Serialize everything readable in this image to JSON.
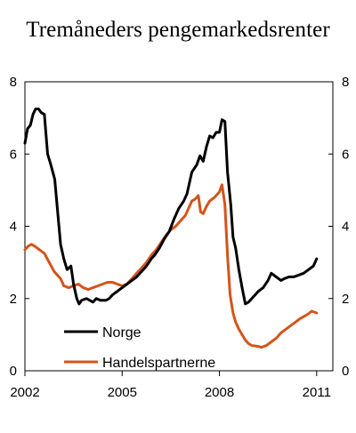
{
  "chart_data": {
    "type": "line",
    "title": "Tremåneders pengemarkedsrenter",
    "xlabel": "",
    "ylabel": "",
    "xlim": [
      2002,
      2011.5
    ],
    "ylim": [
      0,
      8
    ],
    "y_ticks": [
      0,
      2,
      4,
      6,
      8
    ],
    "x_ticks": [
      2002,
      2005,
      2008,
      2011
    ],
    "grid": false,
    "legend_position": "bottom-left",
    "series": [
      {
        "name": "Norge",
        "color": "#000000",
        "points": [
          [
            2002.0,
            6.3
          ],
          [
            2002.08,
            6.7
          ],
          [
            2002.17,
            6.8
          ],
          [
            2002.25,
            7.1
          ],
          [
            2002.33,
            7.25
          ],
          [
            2002.42,
            7.25
          ],
          [
            2002.5,
            7.15
          ],
          [
            2002.6,
            7.1
          ],
          [
            2002.7,
            6.0
          ],
          [
            2002.8,
            5.7
          ],
          [
            2002.92,
            5.3
          ],
          [
            2003.0,
            4.5
          ],
          [
            2003.1,
            3.5
          ],
          [
            2003.2,
            3.1
          ],
          [
            2003.3,
            2.8
          ],
          [
            2003.42,
            2.9
          ],
          [
            2003.5,
            2.4
          ],
          [
            2003.6,
            2.0
          ],
          [
            2003.67,
            1.85
          ],
          [
            2003.75,
            1.95
          ],
          [
            2003.9,
            2.0
          ],
          [
            2004.0,
            1.95
          ],
          [
            2004.1,
            1.9
          ],
          [
            2004.2,
            2.0
          ],
          [
            2004.33,
            1.95
          ],
          [
            2004.5,
            1.95
          ],
          [
            2004.6,
            2.0
          ],
          [
            2004.7,
            2.1
          ],
          [
            2004.85,
            2.2
          ],
          [
            2005.0,
            2.3
          ],
          [
            2005.15,
            2.4
          ],
          [
            2005.3,
            2.5
          ],
          [
            2005.45,
            2.6
          ],
          [
            2005.6,
            2.75
          ],
          [
            2005.75,
            2.9
          ],
          [
            2005.9,
            3.1
          ],
          [
            2006.0,
            3.2
          ],
          [
            2006.15,
            3.4
          ],
          [
            2006.3,
            3.65
          ],
          [
            2006.45,
            3.85
          ],
          [
            2006.6,
            4.2
          ],
          [
            2006.75,
            4.5
          ],
          [
            2006.9,
            4.7
          ],
          [
            2007.0,
            4.9
          ],
          [
            2007.15,
            5.5
          ],
          [
            2007.3,
            5.7
          ],
          [
            2007.4,
            5.95
          ],
          [
            2007.5,
            5.8
          ],
          [
            2007.6,
            6.2
          ],
          [
            2007.7,
            6.5
          ],
          [
            2007.8,
            6.45
          ],
          [
            2007.9,
            6.6
          ],
          [
            2008.0,
            6.6
          ],
          [
            2008.08,
            6.95
          ],
          [
            2008.17,
            6.9
          ],
          [
            2008.25,
            5.5
          ],
          [
            2008.35,
            4.6
          ],
          [
            2008.42,
            3.7
          ],
          [
            2008.5,
            3.4
          ],
          [
            2008.6,
            2.8
          ],
          [
            2008.7,
            2.3
          ],
          [
            2008.8,
            1.85
          ],
          [
            2008.9,
            1.9
          ],
          [
            2009.0,
            2.0
          ],
          [
            2009.1,
            2.1
          ],
          [
            2009.2,
            2.2
          ],
          [
            2009.35,
            2.3
          ],
          [
            2009.5,
            2.5
          ],
          [
            2009.6,
            2.7
          ],
          [
            2009.75,
            2.6
          ],
          [
            2009.9,
            2.5
          ],
          [
            2010.0,
            2.55
          ],
          [
            2010.15,
            2.6
          ],
          [
            2010.3,
            2.6
          ],
          [
            2010.45,
            2.65
          ],
          [
            2010.6,
            2.7
          ],
          [
            2010.75,
            2.8
          ],
          [
            2010.9,
            2.9
          ],
          [
            2011.0,
            3.1
          ]
        ]
      },
      {
        "name": "Handelspartnerne",
        "color": "#d4541a",
        "points": [
          [
            2002.0,
            3.35
          ],
          [
            2002.1,
            3.45
          ],
          [
            2002.2,
            3.5
          ],
          [
            2002.3,
            3.45
          ],
          [
            2002.45,
            3.35
          ],
          [
            2002.6,
            3.25
          ],
          [
            2002.75,
            3.0
          ],
          [
            2002.9,
            2.75
          ],
          [
            2003.0,
            2.65
          ],
          [
            2003.1,
            2.55
          ],
          [
            2003.2,
            2.35
          ],
          [
            2003.35,
            2.3
          ],
          [
            2003.5,
            2.35
          ],
          [
            2003.65,
            2.4
          ],
          [
            2003.8,
            2.3
          ],
          [
            2003.95,
            2.25
          ],
          [
            2004.1,
            2.3
          ],
          [
            2004.25,
            2.35
          ],
          [
            2004.4,
            2.4
          ],
          [
            2004.55,
            2.45
          ],
          [
            2004.7,
            2.45
          ],
          [
            2004.85,
            2.4
          ],
          [
            2005.0,
            2.35
          ],
          [
            2005.15,
            2.4
          ],
          [
            2005.3,
            2.55
          ],
          [
            2005.45,
            2.7
          ],
          [
            2005.6,
            2.85
          ],
          [
            2005.75,
            3.0
          ],
          [
            2005.9,
            3.2
          ],
          [
            2006.05,
            3.35
          ],
          [
            2006.2,
            3.55
          ],
          [
            2006.35,
            3.75
          ],
          [
            2006.5,
            3.9
          ],
          [
            2006.65,
            4.0
          ],
          [
            2006.8,
            4.15
          ],
          [
            2006.95,
            4.3
          ],
          [
            2007.05,
            4.5
          ],
          [
            2007.15,
            4.7
          ],
          [
            2007.25,
            4.75
          ],
          [
            2007.35,
            4.85
          ],
          [
            2007.42,
            4.4
          ],
          [
            2007.5,
            4.35
          ],
          [
            2007.6,
            4.55
          ],
          [
            2007.7,
            4.7
          ],
          [
            2007.85,
            4.8
          ],
          [
            2008.0,
            4.95
          ],
          [
            2008.08,
            5.15
          ],
          [
            2008.17,
            4.6
          ],
          [
            2008.25,
            3.2
          ],
          [
            2008.33,
            2.1
          ],
          [
            2008.42,
            1.6
          ],
          [
            2008.5,
            1.35
          ],
          [
            2008.6,
            1.15
          ],
          [
            2008.7,
            1.0
          ],
          [
            2008.8,
            0.85
          ],
          [
            2008.9,
            0.75
          ],
          [
            2009.0,
            0.7
          ],
          [
            2009.15,
            0.68
          ],
          [
            2009.3,
            0.65
          ],
          [
            2009.45,
            0.7
          ],
          [
            2009.6,
            0.8
          ],
          [
            2009.75,
            0.9
          ],
          [
            2009.9,
            1.05
          ],
          [
            2010.05,
            1.15
          ],
          [
            2010.2,
            1.25
          ],
          [
            2010.35,
            1.35
          ],
          [
            2010.5,
            1.45
          ],
          [
            2010.7,
            1.55
          ],
          [
            2010.85,
            1.65
          ],
          [
            2011.0,
            1.6
          ]
        ]
      }
    ]
  }
}
